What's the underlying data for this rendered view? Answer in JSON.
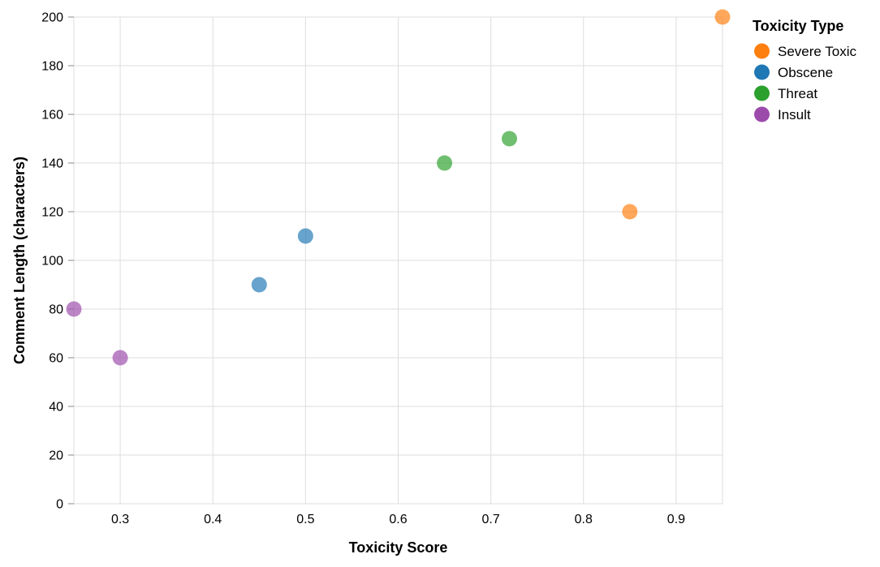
{
  "chart_data": {
    "type": "scatter",
    "title": "",
    "xlabel": "Toxicity Score",
    "ylabel": "Comment Length (characters)",
    "xlim": [
      0.25,
      0.95
    ],
    "ylim": [
      0,
      200
    ],
    "x_ticks": [
      0.3,
      0.4,
      0.5,
      0.6,
      0.7,
      0.8,
      0.9
    ],
    "x_tick_labels": [
      "0.3",
      "0.4",
      "0.5",
      "0.6",
      "0.7",
      "0.8",
      "0.9"
    ],
    "y_ticks": [
      0,
      20,
      40,
      60,
      80,
      100,
      120,
      140,
      160,
      180,
      200
    ],
    "y_tick_labels": [
      "0",
      "20",
      "40",
      "60",
      "80",
      "100",
      "120",
      "140",
      "160",
      "180",
      "200"
    ],
    "grid": true,
    "legend": {
      "title": "Toxicity Type",
      "position": "top-right"
    },
    "series": [
      {
        "name": "Severe Toxic",
        "color": "#ff7f0e",
        "points": [
          {
            "x": 0.85,
            "y": 120
          },
          {
            "x": 0.95,
            "y": 200
          }
        ]
      },
      {
        "name": "Obscene",
        "color": "#1f77b4",
        "points": [
          {
            "x": 0.45,
            "y": 90
          },
          {
            "x": 0.5,
            "y": 110
          }
        ]
      },
      {
        "name": "Threat",
        "color": "#2ca02c",
        "points": [
          {
            "x": 0.65,
            "y": 140
          },
          {
            "x": 0.72,
            "y": 150
          }
        ]
      },
      {
        "name": "Insult",
        "color": "#9c4bab",
        "points": [
          {
            "x": 0.25,
            "y": 80
          },
          {
            "x": 0.3,
            "y": 60
          }
        ]
      }
    ]
  }
}
